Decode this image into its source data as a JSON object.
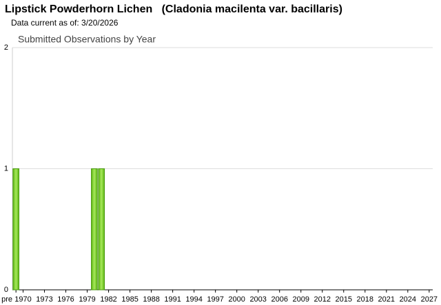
{
  "header": {
    "title": "Lipstick Powderhorn Lichen   (Cladonia macilenta var. bacillaris)",
    "subtitle": "Data current as of: 3/20/2026"
  },
  "chart_data": {
    "type": "bar",
    "title": "Submitted Observations by Year",
    "categories": [
      "pre",
      "1970",
      null,
      null,
      "1973",
      null,
      null,
      "1976",
      null,
      null,
      "1979",
      null,
      null,
      "1982",
      null,
      null,
      "1985",
      null,
      null,
      "1988",
      null,
      null,
      "1991",
      null,
      null,
      "1994",
      null,
      null,
      "1997",
      null,
      null,
      "2000",
      null,
      null,
      "2003",
      null,
      null,
      "2006",
      null,
      null,
      "2009",
      null,
      null,
      "2012",
      null,
      null,
      "2015",
      null,
      null,
      "2018",
      null,
      null,
      "2021",
      null,
      null,
      "2024",
      null,
      null,
      "2027"
    ],
    "values": [
      1,
      0,
      0,
      0,
      0,
      0,
      0,
      0,
      0,
      0,
      0,
      1,
      1,
      0,
      0,
      0,
      0,
      0,
      0,
      0,
      0,
      0,
      0,
      0,
      0,
      0,
      0,
      0,
      0,
      0,
      0,
      0,
      0,
      0,
      0,
      0,
      0,
      0,
      0,
      0,
      0,
      0,
      0,
      0,
      0,
      0,
      0,
      0,
      0,
      0,
      0,
      0,
      0,
      0,
      0,
      0,
      0,
      0,
      0
    ],
    "color": "#7ed321",
    "ylim": [
      0,
      2
    ],
    "yticks": [
      0,
      1,
      2
    ],
    "grid": true
  }
}
